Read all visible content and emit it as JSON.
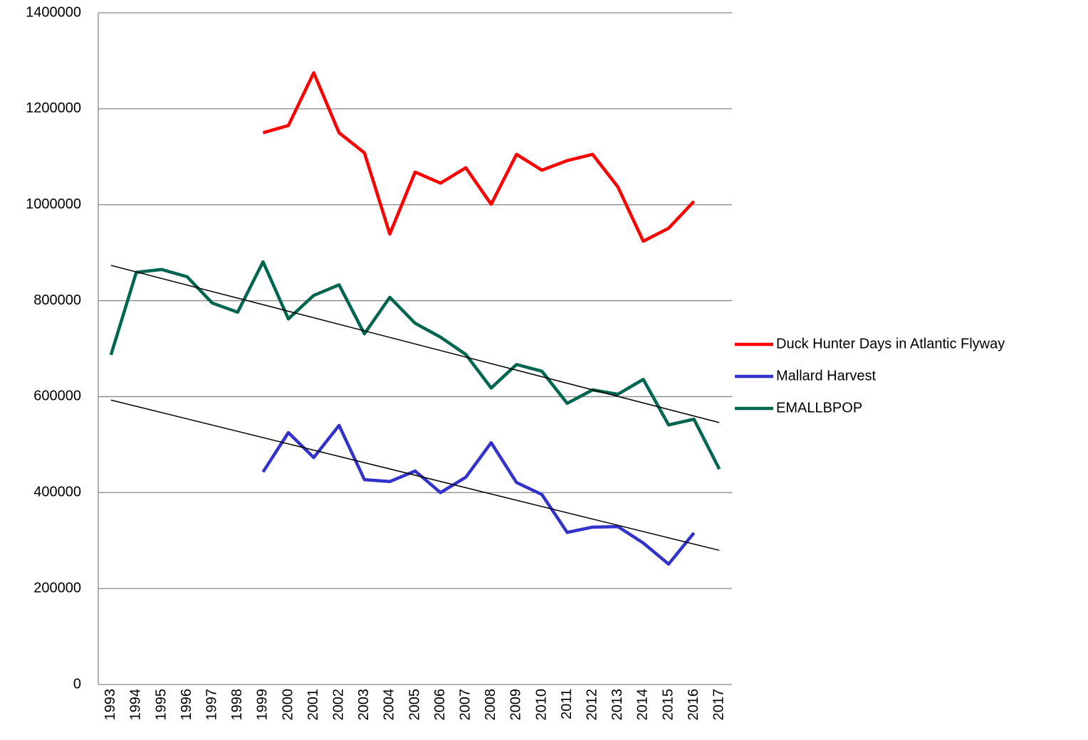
{
  "chart_data": {
    "type": "line",
    "categories": [
      "1993",
      "1994",
      "1995",
      "1996",
      "1997",
      "1998",
      "1999",
      "2000",
      "2001",
      "2002",
      "2003",
      "2004",
      "2005",
      "2006",
      "2007",
      "2008",
      "2009",
      "2010",
      "2011",
      "2012",
      "2013",
      "2014",
      "2015",
      "2016",
      "2017"
    ],
    "series": [
      {
        "name": "Duck Hunter Days in Atlantic Flyway",
        "color": "#ff0000",
        "trendline": false,
        "values": [
          null,
          null,
          null,
          null,
          null,
          null,
          1150000,
          1165000,
          1275000,
          1150000,
          1108000,
          939000,
          1068000,
          1045000,
          1077000,
          1001000,
          1105000,
          1072000,
          1092000,
          1105000,
          1037000,
          924000,
          951000,
          1007000,
          null
        ]
      },
      {
        "name": "Mallard Harvest",
        "color": "#3333cc",
        "trendline": true,
        "values": [
          null,
          null,
          null,
          null,
          null,
          null,
          443000,
          525000,
          473000,
          540000,
          427000,
          423000,
          445000,
          400000,
          432000,
          504000,
          421000,
          396000,
          317000,
          328000,
          329000,
          295000,
          251000,
          316000,
          null
        ]
      },
      {
        "name": "EMALLBPOP",
        "color": "#006650",
        "trendline": true,
        "values": [
          687000,
          859000,
          865000,
          850000,
          795000,
          776000,
          881000,
          762000,
          811000,
          833000,
          731000,
          807000,
          753000,
          724000,
          688000,
          618000,
          667000,
          653000,
          586000,
          614000,
          605000,
          636000,
          541000,
          553000,
          449000
        ]
      }
    ],
    "ylim": [
      0,
      1400000
    ],
    "yticks": [
      0,
      200000,
      400000,
      600000,
      800000,
      1000000,
      1200000,
      1400000
    ],
    "grid": true,
    "legend": "right"
  }
}
